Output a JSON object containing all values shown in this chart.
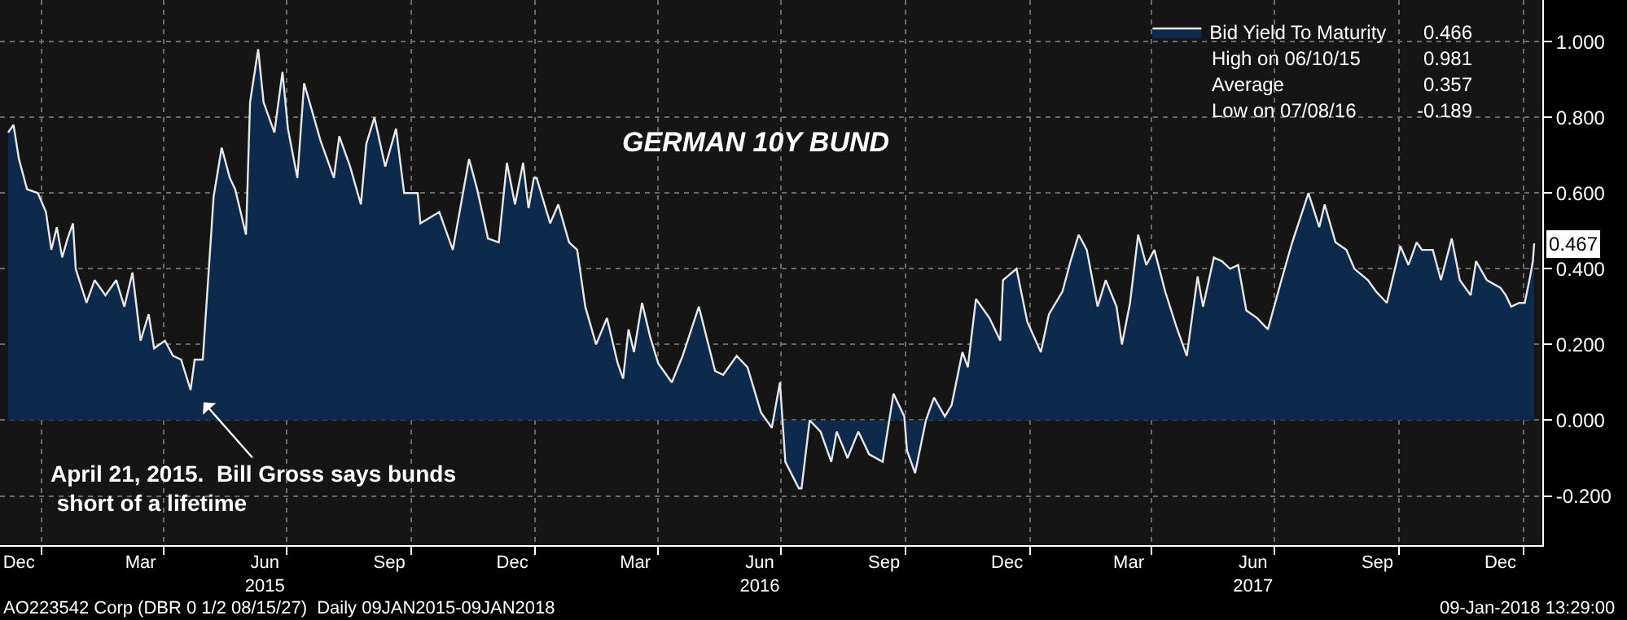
{
  "chart_data": {
    "type": "area",
    "title": "GERMAN 10Y BUND",
    "x": [
      "2014-12-07",
      "2014-12-11",
      "2014-12-15",
      "2014-12-21",
      "2014-12-29",
      "2015-01-04",
      "2015-01-08",
      "2015-01-12",
      "2015-01-16",
      "2015-01-20",
      "2015-01-24",
      "2015-01-26",
      "2015-02-03",
      "2015-02-09",
      "2015-02-17",
      "2015-02-25",
      "2015-03-03",
      "2015-03-09",
      "2015-03-15",
      "2015-03-21",
      "2015-03-25",
      "2015-04-02",
      "2015-04-08",
      "2015-04-14",
      "2015-04-21",
      "2015-04-24",
      "2015-04-30",
      "2015-05-06",
      "2015-05-08",
      "2015-05-14",
      "2015-05-20",
      "2015-05-24",
      "2015-06-01",
      "2015-06-04",
      "2015-06-10",
      "2015-06-14",
      "2015-06-22",
      "2015-06-28",
      "2015-07-02",
      "2015-07-09",
      "2015-07-14",
      "2015-07-26",
      "2015-08-05",
      "2015-08-09",
      "2015-08-17",
      "2015-08-25",
      "2015-08-29",
      "2015-09-04",
      "2015-09-12",
      "2015-09-20",
      "2015-09-26",
      "2015-10-06",
      "2015-10-08",
      "2015-10-22",
      "2015-11-01",
      "2015-11-13",
      "2015-11-19",
      "2015-11-27",
      "2015-12-05",
      "2015-12-11",
      "2015-12-17",
      "2015-12-23",
      "2015-12-27",
      "2015-12-31",
      "2016-01-02",
      "2016-01-12",
      "2016-01-18",
      "2016-01-26",
      "2016-02-01",
      "2016-02-07",
      "2016-02-15",
      "2016-02-23",
      "2016-03-02",
      "2016-03-06",
      "2016-03-10",
      "2016-03-14",
      "2016-03-20",
      "2016-03-26",
      "2016-04-01",
      "2016-04-11",
      "2016-04-19",
      "2016-05-01",
      "2016-05-13",
      "2016-05-19",
      "2016-05-29",
      "2016-06-06",
      "2016-06-16",
      "2016-06-24",
      "2016-06-30",
      "2016-07-04",
      "2016-07-14",
      "2016-07-16",
      "2016-07-22",
      "2016-07-30",
      "2016-08-07",
      "2016-08-11",
      "2016-08-19",
      "2016-08-27",
      "2016-09-04",
      "2016-09-14",
      "2016-09-22",
      "2016-09-30",
      "2016-10-02",
      "2016-10-08",
      "2016-10-16",
      "2016-10-22",
      "2016-10-30",
      "2016-11-04",
      "2016-11-12",
      "2016-11-16",
      "2016-11-22",
      "2016-12-02",
      "2016-12-10",
      "2016-12-12",
      "2016-12-22",
      "2016-12-30",
      "2017-01-09",
      "2017-01-15",
      "2017-01-25",
      "2017-01-31",
      "2017-02-06",
      "2017-02-12",
      "2017-02-20",
      "2017-02-26",
      "2017-03-06",
      "2017-03-10",
      "2017-03-16",
      "2017-03-22",
      "2017-03-28",
      "2017-04-03",
      "2017-04-11",
      "2017-04-19",
      "2017-04-27",
      "2017-05-05",
      "2017-05-09",
      "2017-05-17",
      "2017-05-23",
      "2017-05-29",
      "2017-06-04",
      "2017-06-10",
      "2017-06-18",
      "2017-06-26",
      "2017-07-06",
      "2017-07-14",
      "2017-07-26",
      "2017-08-03",
      "2017-08-07",
      "2017-08-15",
      "2017-08-23",
      "2017-08-29",
      "2017-09-08",
      "2017-09-14",
      "2017-09-22",
      "2017-10-02",
      "2017-10-08",
      "2017-10-14",
      "2017-10-18",
      "2017-10-26",
      "2017-11-01",
      "2017-11-09",
      "2017-11-15",
      "2017-11-23",
      "2017-11-27",
      "2017-12-05",
      "2017-12-15",
      "2017-12-19",
      "2017-12-23",
      "2017-12-29",
      "2018-01-02",
      "2018-01-06",
      "2018-01-08",
      "2018-01-09"
    ],
    "series": [
      {
        "name": "Bid Yield To Maturity",
        "color": "#0d2a4d",
        "values": [
          0.76,
          0.78,
          0.69,
          0.61,
          0.6,
          0.55,
          0.45,
          0.51,
          0.43,
          0.48,
          0.52,
          0.4,
          0.31,
          0.37,
          0.33,
          0.37,
          0.3,
          0.39,
          0.21,
          0.28,
          0.19,
          0.21,
          0.17,
          0.16,
          0.08,
          0.16,
          0.16,
          0.48,
          0.59,
          0.72,
          0.64,
          0.61,
          0.49,
          0.84,
          0.98,
          0.84,
          0.76,
          0.92,
          0.77,
          0.64,
          0.89,
          0.74,
          0.64,
          0.75,
          0.67,
          0.57,
          0.73,
          0.8,
          0.67,
          0.77,
          0.6,
          0.6,
          0.52,
          0.55,
          0.45,
          0.69,
          0.61,
          0.48,
          0.47,
          0.68,
          0.57,
          0.68,
          0.56,
          0.64,
          0.64,
          0.52,
          0.57,
          0.47,
          0.45,
          0.3,
          0.2,
          0.27,
          0.15,
          0.11,
          0.24,
          0.18,
          0.31,
          0.22,
          0.15,
          0.1,
          0.17,
          0.3,
          0.13,
          0.12,
          0.17,
          0.14,
          0.02,
          -0.02,
          0.1,
          -0.11,
          -0.18,
          -0.18,
          0.0,
          -0.03,
          -0.11,
          -0.03,
          -0.1,
          -0.03,
          -0.09,
          -0.11,
          0.07,
          0.01,
          -0.08,
          -0.14,
          0.0,
          0.06,
          0.01,
          0.04,
          0.18,
          0.14,
          0.32,
          0.27,
          0.21,
          0.37,
          0.4,
          0.26,
          0.18,
          0.28,
          0.34,
          0.42,
          0.49,
          0.45,
          0.3,
          0.37,
          0.3,
          0.2,
          0.31,
          0.49,
          0.41,
          0.45,
          0.34,
          0.25,
          0.17,
          0.38,
          0.3,
          0.43,
          0.42,
          0.4,
          0.41,
          0.29,
          0.27,
          0.24,
          0.37,
          0.47,
          0.6,
          0.51,
          0.57,
          0.47,
          0.45,
          0.4,
          0.37,
          0.34,
          0.31,
          0.46,
          0.41,
          0.47,
          0.45,
          0.45,
          0.37,
          0.48,
          0.37,
          0.33,
          0.42,
          0.37,
          0.35,
          0.33,
          0.3,
          0.31,
          0.31,
          0.38,
          0.42,
          0.467
        ],
        "value_labels": [
          null,
          null,
          null,
          null,
          null,
          null,
          null,
          null,
          null,
          null,
          null,
          null,
          null,
          null,
          null,
          null,
          null,
          null,
          null,
          null,
          null,
          null,
          null,
          null,
          null,
          null,
          null,
          null,
          null,
          null,
          null,
          null,
          null,
          null,
          null,
          null,
          null,
          null,
          null,
          null,
          null,
          null,
          null,
          null,
          null,
          null,
          null,
          null,
          null,
          null,
          null,
          null,
          null,
          null,
          null,
          null,
          null,
          null,
          null,
          null,
          null,
          null,
          null,
          null,
          null,
          null,
          null,
          null,
          null,
          null,
          null,
          null,
          null,
          null,
          null,
          null,
          null,
          null,
          null,
          null,
          null,
          null,
          null,
          null,
          null,
          null,
          null,
          null,
          null,
          null,
          null,
          null,
          null,
          null,
          null,
          null,
          null,
          null,
          null,
          null,
          null,
          null,
          null,
          null,
          null,
          null,
          null,
          null,
          null,
          null,
          null,
          null,
          null,
          null,
          null,
          null,
          null,
          null,
          null,
          null,
          null,
          null,
          null,
          null,
          null,
          null,
          null,
          null,
          null,
          null,
          null,
          null,
          null,
          null,
          null,
          null,
          null,
          null,
          null,
          null,
          null,
          null,
          null,
          null,
          null,
          null,
          null,
          null,
          null,
          null,
          null,
          null,
          null,
          null,
          null,
          null,
          null,
          null,
          null,
          null,
          null,
          null,
          null,
          null,
          null,
          null,
          null,
          null,
          null,
          null,
          null,
          "0.467"
        ]
      }
    ],
    "xlim": [
      "2014-12-01",
      "2018-01-15"
    ],
    "xticks": [
      {
        "value": "2014-12-15",
        "label": "Dec"
      },
      {
        "value": "2015-03-15",
        "label": "Mar"
      },
      {
        "value": "2015-06-15",
        "label": "Jun\n2015"
      },
      {
        "value": "2015-09-15",
        "label": "Sep"
      },
      {
        "value": "2015-12-15",
        "label": "Dec"
      },
      {
        "value": "2016-03-15",
        "label": "Mar"
      },
      {
        "value": "2016-06-15",
        "label": "Jun\n2016"
      },
      {
        "value": "2016-09-15",
        "label": "Sep"
      },
      {
        "value": "2016-12-15",
        "label": "Dec"
      },
      {
        "value": "2017-03-15",
        "label": "Mar"
      },
      {
        "value": "2017-06-15",
        "label": "Jun\n2017"
      },
      {
        "value": "2017-09-15",
        "label": "Sep"
      },
      {
        "value": "2017-12-15",
        "label": "Dec"
      },
      {
        "value": "2015-01-01",
        "label": null
      },
      {
        "value": "2015-04-01",
        "label": null
      },
      {
        "value": "2015-07-01",
        "label": null
      },
      {
        "value": "2015-10-01",
        "label": null
      },
      {
        "value": "2016-01-01",
        "label": null
      },
      {
        "value": "2016-04-01",
        "label": null
      },
      {
        "value": "2016-07-01",
        "label": null
      },
      {
        "value": "2016-10-01",
        "label": null
      },
      {
        "value": "2017-01-01",
        "label": null
      },
      {
        "value": "2017-04-01",
        "label": null
      },
      {
        "value": "2017-07-01",
        "label": null
      },
      {
        "value": "2017-10-01",
        "label": null
      },
      {
        "value": "2018-01-01",
        "label": null
      }
    ],
    "ylim": [
      -0.33,
      1.11
    ],
    "yticks": [
      {
        "value": -0.2,
        "label": "-0.200"
      },
      {
        "value": 0,
        "label": "0.000"
      },
      {
        "value": 0.2,
        "label": "0.200"
      },
      {
        "value": 0.4,
        "label": "0.400"
      },
      {
        "value": 0.6,
        "label": "0.600"
      },
      {
        "value": 0.8,
        "label": "0.800"
      },
      {
        "value": 1.0,
        "label": "1.000"
      }
    ],
    "grid": true,
    "legend": "top right",
    "annotations": [
      "April 21, 2015.  Bill Gross says bunds\n short of a lifetime",
      "0.466",
      "High on 06/10/15",
      "0.981",
      "Average",
      "0.357",
      "Low on 07/08/16",
      "-0.189",
      "AO223542 Corp (DBR 0 1/2 08/15/27)  Daily 09JAN2015-09JAN2018",
      "09-Jan-2018 13:29:00"
    ]
  }
}
